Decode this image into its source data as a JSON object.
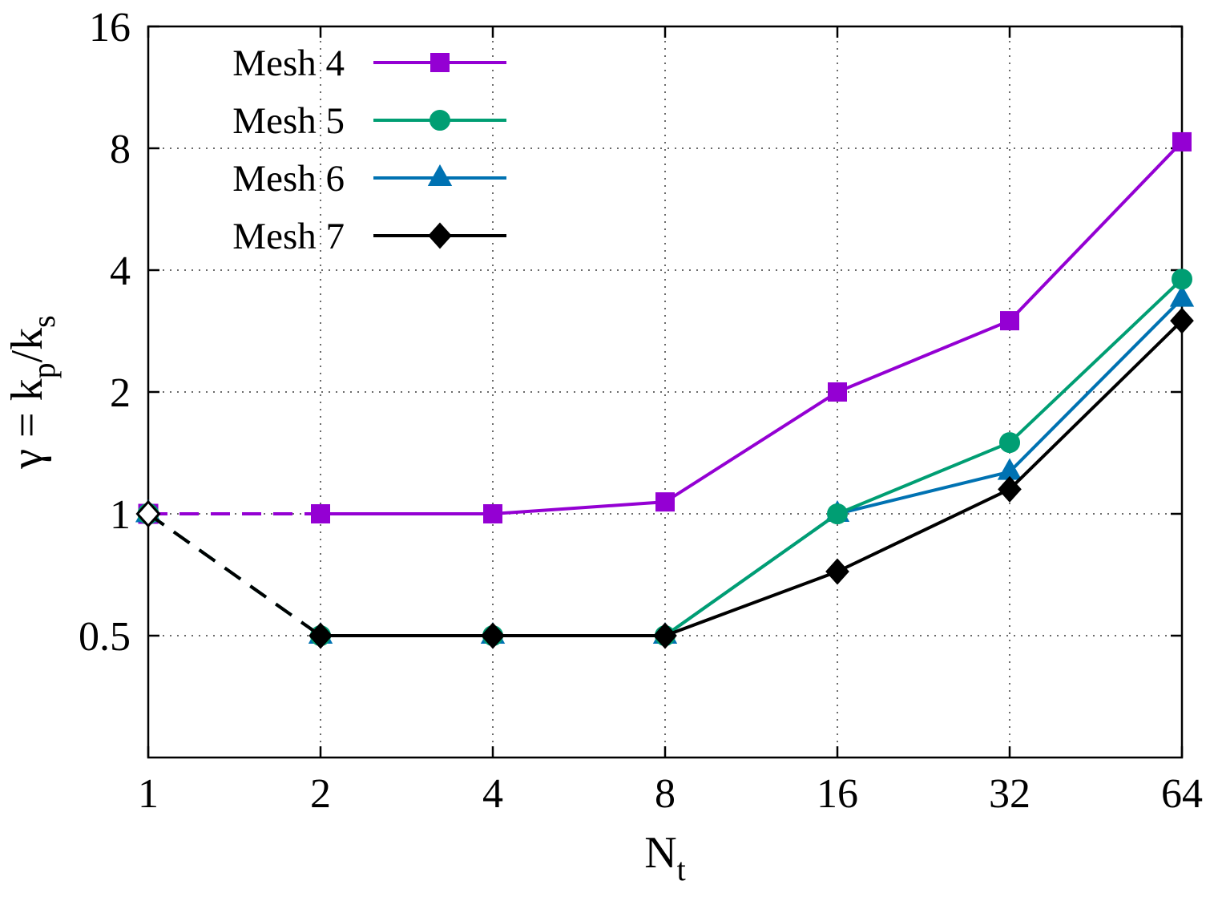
{
  "chart_data": {
    "type": "line",
    "x_scale": "log2",
    "y_scale": "log2",
    "xlim": [
      1,
      64
    ],
    "ylim": [
      0.25,
      16
    ],
    "grid": true,
    "legend_position": "top-left",
    "xlabel_parts": [
      {
        "t": "N"
      },
      {
        "sub": "t"
      }
    ],
    "ylabel_parts": [
      {
        "t": "γ = k"
      },
      {
        "sub": "p"
      },
      {
        "t": "/k"
      },
      {
        "sub": "s"
      }
    ],
    "x_ticks": [
      {
        "v": 1,
        "label": "1"
      },
      {
        "v": 2,
        "label": "2"
      },
      {
        "v": 4,
        "label": "4"
      },
      {
        "v": 8,
        "label": "8"
      },
      {
        "v": 16,
        "label": "16"
      },
      {
        "v": 32,
        "label": "32"
      },
      {
        "v": 64,
        "label": "64"
      }
    ],
    "y_ticks": [
      {
        "v": 0.5,
        "label": "0.5"
      },
      {
        "v": 1,
        "label": "1"
      },
      {
        "v": 2,
        "label": "2"
      },
      {
        "v": 4,
        "label": "4"
      },
      {
        "v": 8,
        "label": "8"
      },
      {
        "v": 16,
        "label": "16"
      }
    ],
    "x": [
      1,
      2,
      4,
      8,
      16,
      32,
      64
    ],
    "series": [
      {
        "name": "Mesh 4",
        "color": "#9400d3",
        "marker": "square",
        "values": [
          1.0,
          1.0,
          1.0,
          1.07,
          2.0,
          3.0,
          8.3
        ],
        "first_point_open": true,
        "first_segment_dashed": true
      },
      {
        "name": "Mesh 5",
        "color": "#009e73",
        "marker": "circle",
        "values": [
          1.0,
          0.5,
          0.5,
          0.5,
          1.0,
          1.5,
          3.8
        ],
        "first_point_open": true,
        "first_segment_dashed": true
      },
      {
        "name": "Mesh 6",
        "color": "#0072b2",
        "marker": "triangle",
        "values": [
          1.0,
          0.5,
          0.5,
          0.5,
          1.0,
          1.27,
          3.4
        ],
        "first_point_open": true,
        "first_segment_dashed": true
      },
      {
        "name": "Mesh 7",
        "color": "#000000",
        "marker": "diamond",
        "values": [
          1.0,
          0.5,
          0.5,
          0.5,
          0.72,
          1.15,
          3.0
        ],
        "first_point_open": true,
        "first_segment_dashed": true
      }
    ],
    "render_order": [
      0,
      2,
      1,
      3
    ],
    "grid_color": "#3a3a3a",
    "axis_color": "#000000"
  }
}
